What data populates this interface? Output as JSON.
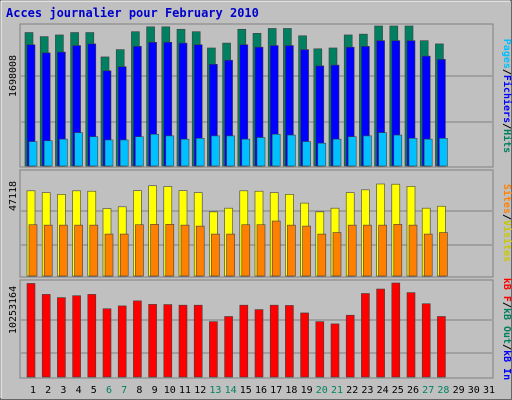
{
  "title": "Acces journalier pour February 2010",
  "colors": {
    "background": "#c0c0c0",
    "border": "#666666",
    "title": "#0000cc",
    "hits": "#008060",
    "files": "#0000ff",
    "pages": "#00c0ff",
    "visits": "#ffff00",
    "sites": "#ff8000",
    "kbin": "#008060",
    "kbout": "#0000ff",
    "kbf": "#ff0000",
    "weekday_label": "#000000",
    "weekend_label": "#008060"
  },
  "chart_data": [
    {
      "type": "bar",
      "panel": "hits-files-pages",
      "ylabel": "1698008",
      "legend": [
        "Pages",
        "/",
        "Fichiers",
        "/",
        "Hits"
      ],
      "legend_placement": "right",
      "grid": true,
      "x": [
        1,
        2,
        3,
        4,
        5,
        6,
        7,
        8,
        9,
        10,
        11,
        12,
        13,
        14,
        15,
        16,
        17,
        18,
        19,
        20,
        21,
        22,
        23,
        24,
        25,
        26,
        27,
        28
      ],
      "series": [
        {
          "name": "Hits",
          "values": [
            1640000,
            1590000,
            1610000,
            1640000,
            1640000,
            1340000,
            1430000,
            1650000,
            1710000,
            1710000,
            1680000,
            1650000,
            1450000,
            1510000,
            1680000,
            1630000,
            1690000,
            1690000,
            1600000,
            1440000,
            1450000,
            1610000,
            1620000,
            1720000,
            1720000,
            1720000,
            1540000,
            1500000
          ]
        },
        {
          "name": "Fichiers",
          "values": [
            1490000,
            1390000,
            1400000,
            1480000,
            1500000,
            1170000,
            1220000,
            1470000,
            1520000,
            1520000,
            1510000,
            1490000,
            1250000,
            1300000,
            1490000,
            1460000,
            1480000,
            1480000,
            1430000,
            1230000,
            1240000,
            1460000,
            1470000,
            1540000,
            1540000,
            1540000,
            1350000,
            1310000
          ]
        },
        {
          "name": "Pages",
          "values": [
            300000,
            310000,
            330000,
            410000,
            360000,
            320000,
            320000,
            360000,
            390000,
            370000,
            330000,
            340000,
            370000,
            370000,
            330000,
            350000,
            390000,
            380000,
            300000,
            280000,
            330000,
            360000,
            370000,
            410000,
            380000,
            340000,
            330000,
            340000
          ]
        }
      ]
    },
    {
      "type": "bar",
      "panel": "visits-sites",
      "ylabel": "47118",
      "legend": [
        "Sites",
        "/",
        "Visites"
      ],
      "legend_placement": "right",
      "grid": true,
      "x": [
        1,
        2,
        3,
        4,
        5,
        6,
        7,
        8,
        9,
        10,
        11,
        12,
        13,
        14,
        15,
        16,
        17,
        18,
        19,
        20,
        21,
        22,
        23,
        24,
        25,
        26,
        27,
        28
      ],
      "series": [
        {
          "name": "Visites",
          "values": [
            43700,
            42800,
            41900,
            43700,
            43500,
            34600,
            35500,
            43800,
            46300,
            45900,
            43800,
            42800,
            32900,
            34800,
            43700,
            43500,
            42800,
            41900,
            37400,
            32900,
            34800,
            42800,
            44200,
            47200,
            47100,
            46000,
            34800,
            35800
          ]
        },
        {
          "name": "Sites",
          "values": [
            26300,
            26100,
            26100,
            26100,
            26100,
            21500,
            21500,
            26300,
            26500,
            26500,
            26100,
            25600,
            21500,
            21500,
            26300,
            26300,
            28200,
            26100,
            25600,
            21500,
            22300,
            26100,
            26100,
            26100,
            26500,
            26100,
            21500,
            22300
          ]
        }
      ]
    },
    {
      "type": "bar",
      "panel": "traffic",
      "ylabel": "10253164",
      "legend": [
        "kB F",
        "/",
        "kB Out",
        "/",
        "kB In"
      ],
      "legend_placement": "right",
      "grid": true,
      "x": [
        1,
        2,
        3,
        4,
        5,
        6,
        7,
        8,
        9,
        10,
        11,
        12,
        13,
        14,
        15,
        16,
        17,
        18,
        19,
        20,
        21,
        22,
        23,
        24,
        25,
        26,
        27,
        28
      ],
      "series": [
        {
          "name": "kB F",
          "values": [
            10250000,
            9050000,
            8700000,
            8910000,
            9050000,
            7480000,
            7790000,
            8340000,
            7960000,
            7940000,
            7870000,
            7870000,
            6070000,
            6630000,
            7870000,
            7390000,
            7870000,
            7840000,
            7020000,
            6070000,
            5820000,
            6770000,
            9150000,
            9640000,
            10300000,
            9250000,
            8030000,
            6630000
          ]
        }
      ]
    }
  ],
  "x_axis": {
    "labels": [
      "1",
      "2",
      "3",
      "4",
      "5",
      "6",
      "7",
      "8",
      "9",
      "10",
      "11",
      "12",
      "13",
      "14",
      "15",
      "16",
      "17",
      "18",
      "19",
      "20",
      "21",
      "22",
      "23",
      "24",
      "25",
      "26",
      "27",
      "28",
      "29",
      "30",
      "31"
    ],
    "weekend": [
      6,
      7,
      13,
      14,
      20,
      21,
      27,
      28
    ]
  }
}
